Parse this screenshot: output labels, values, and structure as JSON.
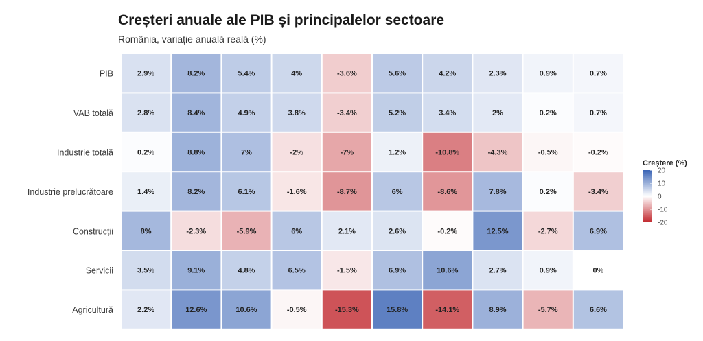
{
  "chart_data": {
    "type": "heatmap",
    "title": "Creșteri anuale ale PIB și principalelor sectoare",
    "subtitle": "România, variație anuală reală (%)",
    "rows": [
      "PIB",
      "VAB totală",
      "Industrie totală",
      "Industrie prelucrătoare",
      "Construcții",
      "Servicii",
      "Agricultură"
    ],
    "values": [
      [
        2.9,
        8.2,
        5.4,
        4,
        -3.6,
        5.6,
        4.2,
        2.3,
        0.9,
        0.7
      ],
      [
        2.8,
        8.4,
        4.9,
        3.8,
        -3.4,
        5.2,
        3.4,
        2,
        0.2,
        0.7
      ],
      [
        0.2,
        8.8,
        7,
        -2,
        -7,
        1.2,
        -10.8,
        -4.3,
        -0.5,
        -0.2
      ],
      [
        1.4,
        8.2,
        6.1,
        -1.6,
        -8.7,
        6,
        -8.6,
        7.8,
        0.2,
        -3.4
      ],
      [
        8,
        -2.3,
        -5.9,
        6,
        2.1,
        2.6,
        -0.2,
        12.5,
        -2.7,
        6.9
      ],
      [
        3.5,
        9.1,
        4.8,
        6.5,
        -1.5,
        6.9,
        10.6,
        2.7,
        0.9,
        0
      ],
      [
        2.2,
        12.6,
        10.6,
        -0.5,
        -15.3,
        15.8,
        -14.1,
        8.9,
        -5.7,
        6.6
      ]
    ],
    "labels": [
      [
        "2.9%",
        "8.2%",
        "5.4%",
        "4%",
        "-3.6%",
        "5.6%",
        "4.2%",
        "2.3%",
        "0.9%",
        "0.7%"
      ],
      [
        "2.8%",
        "8.4%",
        "4.9%",
        "3.8%",
        "-3.4%",
        "5.2%",
        "3.4%",
        "2%",
        "0.2%",
        "0.7%"
      ],
      [
        "0.2%",
        "8.8%",
        "7%",
        "-2%",
        "-7%",
        "1.2%",
        "-10.8%",
        "-4.3%",
        "-0.5%",
        "-0.2%"
      ],
      [
        "1.4%",
        "8.2%",
        "6.1%",
        "-1.6%",
        "-8.7%",
        "6%",
        "-8.6%",
        "7.8%",
        "0.2%",
        "-3.4%"
      ],
      [
        "8%",
        "-2.3%",
        "-5.9%",
        "6%",
        "2.1%",
        "2.6%",
        "-0.2%",
        "12.5%",
        "-2.7%",
        "6.9%"
      ],
      [
        "3.5%",
        "9.1%",
        "4.8%",
        "6.5%",
        "-1.5%",
        "6.9%",
        "10.6%",
        "2.7%",
        "0.9%",
        "0%"
      ],
      [
        "2.2%",
        "12.6%",
        "10.6%",
        "-0.5%",
        "-15.3%",
        "15.8%",
        "-14.1%",
        "8.9%",
        "-5.7%",
        "6.6%"
      ]
    ],
    "color_scale": {
      "min": -20,
      "mid": 0,
      "max": 20,
      "low_color": "#c1272d",
      "mid_color": "#ffffff",
      "high_color": "#3a64b5"
    },
    "legend": {
      "title": "Creștere (%)",
      "ticks": [
        20,
        10,
        0,
        -10,
        -20
      ],
      "position": "right"
    }
  }
}
